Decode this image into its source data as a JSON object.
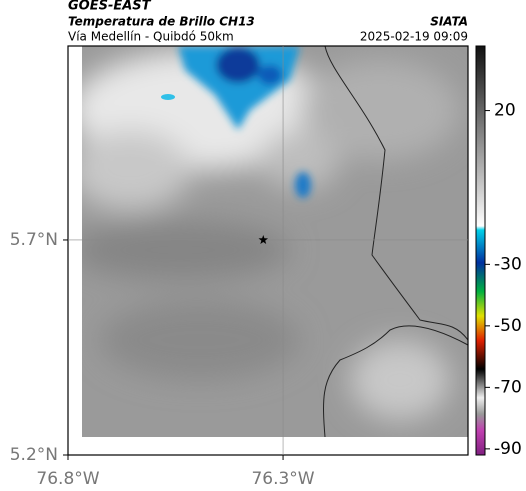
{
  "header": {
    "title": "GOES-EAST",
    "subtitle": "Temperatura de Brillo CH13",
    "region": "Vía Medellín - Quibdó 50km",
    "source": "SIATA",
    "timestamp": "2025-02-19 09:09"
  },
  "map": {
    "xlim": [
      -76.8,
      -75.87
    ],
    "ylim": [
      5.2,
      6.151
    ],
    "xticks": [
      {
        "value": -76.8,
        "label": "76.8°W"
      },
      {
        "value": -76.3,
        "label": "76.3°W"
      }
    ],
    "yticks": [
      {
        "value": 5.2,
        "label": "5.2°N"
      },
      {
        "value": 5.7,
        "label": "5.7°N"
      }
    ],
    "marker": {
      "lon": -76.346,
      "lat": 5.7
    }
  },
  "colorbar": {
    "lim": [
      -92,
      41
    ],
    "ticks": [
      20,
      -30,
      -50,
      -70,
      -90
    ]
  }
}
